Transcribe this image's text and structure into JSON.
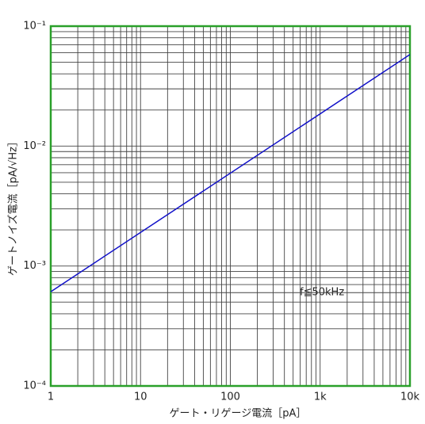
{
  "chart_data": {
    "type": "line",
    "xlabel": "ゲート・リゲージ電流［pA］",
    "ylabel": "ゲートノイズ電流［pA/√Hz］",
    "annotation": "f≦50kHz",
    "x": [
      1,
      10000
    ],
    "series": [
      {
        "color": "#1010c8",
        "values": [
          0.00061,
          0.058
        ]
      }
    ],
    "xscale": "log",
    "yscale": "log",
    "xlim": [
      1,
      10000
    ],
    "ylim": [
      0.0001,
      0.1
    ],
    "xticks": [
      1,
      10,
      100,
      {
        "value": 1000,
        "label": "1k"
      },
      {
        "value": 10000,
        "label": "10k"
      }
    ],
    "yticks": [
      {
        "value": 0.0001,
        "label": "10⁻⁴"
      },
      {
        "value": 0.001,
        "label": "10⁻³"
      },
      {
        "value": 0.01,
        "label": "10⁻²"
      },
      {
        "value": 0.1,
        "label": "10⁻¹"
      }
    ],
    "grid": true,
    "minor_grid": true,
    "frame_color": "#2aa02a"
  }
}
